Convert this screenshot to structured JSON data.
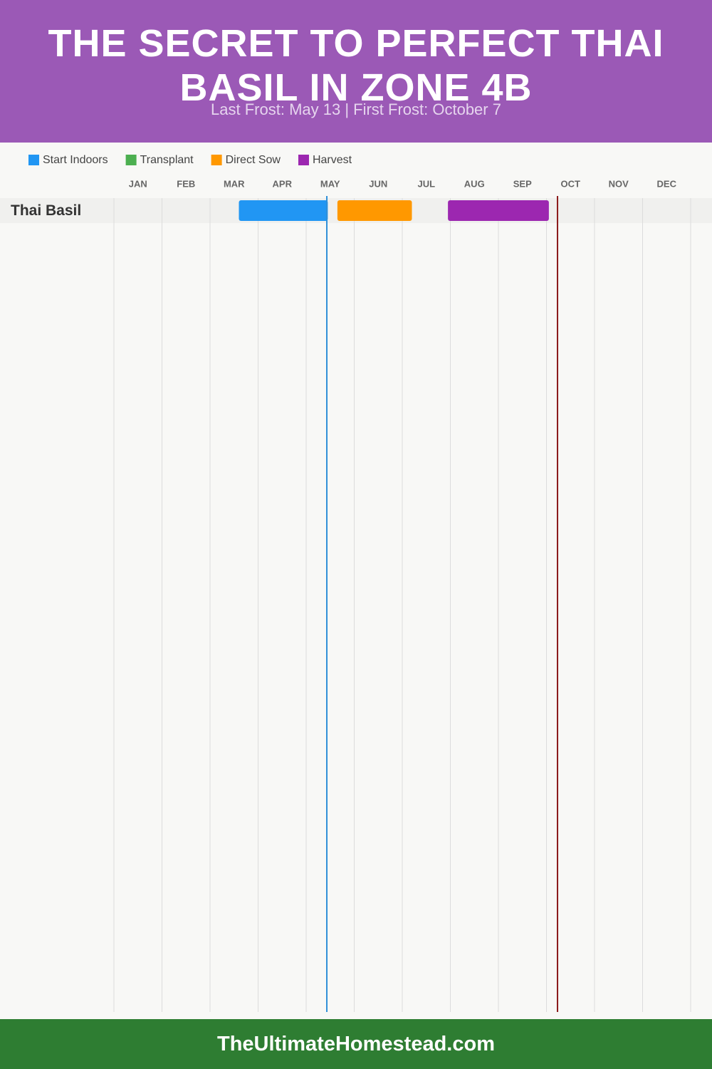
{
  "chart_data": {
    "type": "gantt",
    "title": "THE SECRET TO PERFECT THAI BASIL IN ZONE 4B",
    "subtitle": "Last Frost: May 13 | First Frost: October 7",
    "footer": "TheUltimateHomestead.com",
    "months": [
      "JAN",
      "FEB",
      "MAR",
      "APR",
      "MAY",
      "JUN",
      "JUL",
      "AUG",
      "SEP",
      "OCT",
      "NOV",
      "DEC"
    ],
    "xlim": [
      0,
      12
    ],
    "crops": [
      "Thai Basil"
    ],
    "series": [
      {
        "name": "Start Indoors",
        "color": "#2196f3",
        "start": [
          2.6
        ],
        "end": [
          4.45
        ]
      },
      {
        "name": "Transplant",
        "color": "#4caf50",
        "start": [
          null
        ],
        "end": [
          null
        ]
      },
      {
        "name": "Direct Sow",
        "color": "#ff9800",
        "start": [
          4.65
        ],
        "end": [
          6.2
        ]
      },
      {
        "name": "Harvest",
        "color": "#9c27b0",
        "start": [
          6.95
        ],
        "end": [
          9.05
        ]
      }
    ],
    "frost_lines": [
      {
        "value": 4.43,
        "color": "#2f8fd8"
      },
      {
        "value": 9.23,
        "color": "#8b1a1a"
      }
    ]
  }
}
